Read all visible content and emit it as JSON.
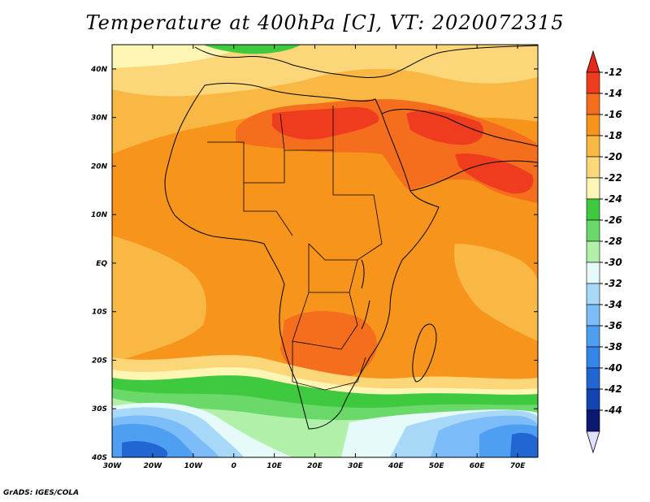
{
  "title": "Temperature at 400hPa [C], VT: 2020072315",
  "footer": "GrADS: IGES/COLA",
  "map": {
    "lon_range": [
      -30,
      75
    ],
    "lat_range": [
      -40,
      45
    ],
    "lat_ticks": [
      {
        "value": 40,
        "label": "40N"
      },
      {
        "value": 30,
        "label": "30N"
      },
      {
        "value": 20,
        "label": "20N"
      },
      {
        "value": 10,
        "label": "10N"
      },
      {
        "value": 0,
        "label": "EQ"
      },
      {
        "value": -10,
        "label": "10S"
      },
      {
        "value": -20,
        "label": "20S"
      },
      {
        "value": -30,
        "label": "30S"
      },
      {
        "value": -40,
        "label": "40S"
      }
    ],
    "lon_ticks": [
      {
        "value": -30,
        "label": "30W"
      },
      {
        "value": -20,
        "label": "20W"
      },
      {
        "value": -10,
        "label": "10W"
      },
      {
        "value": 0,
        "label": "0"
      },
      {
        "value": 10,
        "label": "10E"
      },
      {
        "value": 20,
        "label": "20E"
      },
      {
        "value": 30,
        "label": "30E"
      },
      {
        "value": 40,
        "label": "40E"
      },
      {
        "value": 50,
        "label": "50E"
      },
      {
        "value": 60,
        "label": "60E"
      },
      {
        "value": 70,
        "label": "70E"
      }
    ]
  },
  "colorbar": {
    "levels": [
      "-12",
      "-14",
      "-16",
      "-18",
      "-20",
      "-22",
      "-24",
      "-26",
      "-28",
      "-30",
      "-32",
      "-34",
      "-36",
      "-38",
      "-40",
      "-42",
      "-44"
    ],
    "colors": [
      "#f03c1e",
      "#f56e1e",
      "#f7941c",
      "#f9b844",
      "#fbd77a",
      "#fcf5b4",
      "#3ec93e",
      "#6ad96a",
      "#b0f0a8",
      "#e6fafa",
      "#a8d8f8",
      "#7cbcf8",
      "#4e9ef2",
      "#3386e8",
      "#2266d4",
      "#1444b0",
      "#0a1870"
    ],
    "arrow_top_color": "#e52a1a",
    "arrow_bottom_color": "#e0e0ff"
  },
  "field": {
    "zones": [
      {
        "color": "#fbd77a"
      },
      {
        "color": "#f9b844"
      },
      {
        "color": "#f7941c"
      },
      {
        "color": "#f56e1e"
      },
      {
        "color": "#f03c1e"
      },
      {
        "color": "#fcf5b4"
      },
      {
        "color": "#3ec93e"
      },
      {
        "color": "#6ad96a"
      },
      {
        "color": "#b0f0a8"
      },
      {
        "color": "#e6fafa"
      },
      {
        "color": "#a8d8f8"
      },
      {
        "color": "#7cbcf8"
      },
      {
        "color": "#4e9ef2"
      },
      {
        "color": "#2266d4"
      }
    ]
  }
}
